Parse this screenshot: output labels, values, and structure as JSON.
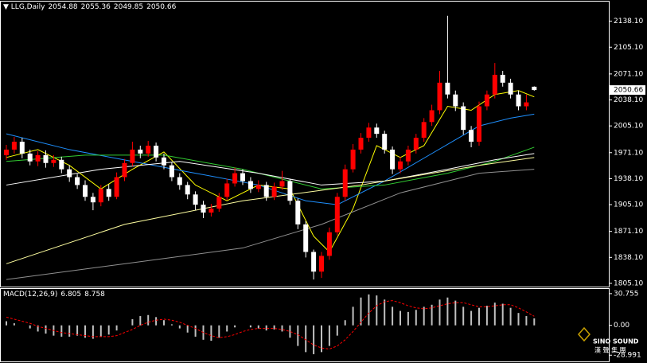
{
  "chart_data": [
    {
      "type": "candlestick",
      "title": "LLG,Daily",
      "background": "#000000",
      "up_color": "#ff0000",
      "down_color": "#ffffff",
      "open": [
        1968,
        1975,
        1985,
        1970,
        1960,
        1968,
        1958,
        1962,
        1950,
        1940,
        1930,
        1915,
        1908,
        1925,
        1915,
        1940,
        1958,
        1975,
        1970,
        1980,
        1965,
        1955,
        1940,
        1930,
        1918,
        1905,
        1895,
        1900,
        1915,
        1932,
        1945,
        1935,
        1925,
        1930,
        1915,
        1928,
        1935,
        1910,
        1880,
        1845,
        1820,
        1840,
        1870,
        1915,
        1950,
        1975,
        1990,
        2003,
        1995,
        1975,
        1950,
        1960,
        1975,
        1990,
        2010,
        2025,
        2060,
        2045,
        2030,
        2000,
        1985,
        2030,
        2045,
        2070,
        2060,
        2045,
        2030,
        2054.88
      ],
      "high": [
        1981,
        1991,
        1990,
        1975,
        1973,
        1974,
        1968,
        1966,
        1955,
        1944,
        1936,
        1920,
        1930,
        1931,
        1946,
        1963,
        1985,
        1980,
        1986,
        1984,
        1970,
        1959,
        1945,
        1934,
        1922,
        1910,
        1906,
        1920,
        1938,
        1952,
        1950,
        1940,
        1936,
        1934,
        1933,
        1948,
        1938,
        1913,
        1884,
        1848,
        1845,
        1876,
        1920,
        1956,
        1982,
        1996,
        2009,
        2008,
        1999,
        1979,
        1966,
        1980,
        1995,
        2015,
        2032,
        2075,
        2145,
        2050,
        2035,
        2005,
        2036,
        2050,
        2085,
        2075,
        2065,
        2050,
        2045,
        2055.36
      ],
      "low": [
        1962,
        1970,
        1964,
        1955,
        1954,
        1952,
        1953,
        1945,
        1934,
        1925,
        1910,
        1898,
        1903,
        1910,
        1912,
        1935,
        1954,
        1964,
        1966,
        1960,
        1950,
        1935,
        1924,
        1912,
        1898,
        1888,
        1890,
        1896,
        1911,
        1928,
        1930,
        1920,
        1921,
        1910,
        1911,
        1924,
        1905,
        1874,
        1838,
        1810,
        1812,
        1835,
        1866,
        1910,
        1946,
        1970,
        1985,
        1990,
        1970,
        1944,
        1945,
        1955,
        1970,
        1985,
        2005,
        2020,
        2040,
        2024,
        1994,
        1978,
        1980,
        2025,
        2040,
        2055,
        2040,
        2025,
        2025,
        2049.85
      ],
      "close": [
        1975,
        1985,
        1970,
        1960,
        1968,
        1958,
        1962,
        1950,
        1940,
        1930,
        1915,
        1908,
        1925,
        1915,
        1940,
        1958,
        1975,
        1970,
        1980,
        1965,
        1955,
        1940,
        1930,
        1918,
        1905,
        1895,
        1900,
        1915,
        1932,
        1945,
        1935,
        1925,
        1930,
        1915,
        1928,
        1935,
        1910,
        1880,
        1845,
        1820,
        1840,
        1870,
        1915,
        1950,
        1975,
        1990,
        2003,
        1995,
        1975,
        1950,
        1960,
        1975,
        1990,
        2010,
        2025,
        2060,
        2045,
        2030,
        2000,
        1985,
        2030,
        2045,
        2070,
        2060,
        2045,
        2030,
        2035,
        2050.66
      ],
      "lines": [
        {
          "color": "#ffff00",
          "x": [
            0,
            4,
            8,
            12,
            16,
            20,
            24,
            28,
            32,
            36,
            39,
            41,
            44,
            47,
            50,
            53,
            56,
            59,
            62,
            65,
            67
          ],
          "values": [
            1965,
            1975,
            1955,
            1925,
            1950,
            1972,
            1930,
            1910,
            1930,
            1925,
            1865,
            1845,
            1900,
            1980,
            1965,
            1980,
            2030,
            2025,
            2045,
            2050,
            2042
          ]
        },
        {
          "color": "#1e90ff",
          "x": [
            0,
            8,
            16,
            24,
            32,
            38,
            42,
            48,
            54,
            60,
            64,
            67
          ],
          "values": [
            1995,
            1975,
            1960,
            1945,
            1930,
            1910,
            1905,
            1935,
            1970,
            2005,
            2015,
            2020
          ]
        },
        {
          "color": "#32cd32",
          "x": [
            0,
            10,
            20,
            30,
            40,
            48,
            56,
            62,
            67
          ],
          "values": [
            1960,
            1968,
            1968,
            1950,
            1925,
            1930,
            1945,
            1960,
            1978
          ]
        },
        {
          "color": "#ffffff",
          "x": [
            0,
            12,
            22,
            32,
            40,
            48,
            56,
            62,
            67
          ],
          "values": [
            1930,
            1950,
            1960,
            1945,
            1930,
            1935,
            1950,
            1962,
            1970
          ]
        },
        {
          "color": "#ffffa0",
          "x": [
            0,
            15,
            30,
            45,
            60,
            67
          ],
          "values": [
            1830,
            1880,
            1910,
            1930,
            1955,
            1965
          ]
        },
        {
          "color": "#909090",
          "x": [
            0,
            15,
            30,
            40,
            50,
            60,
            67
          ],
          "values": [
            1810,
            1830,
            1850,
            1880,
            1920,
            1945,
            1950
          ]
        }
      ],
      "ylim": [
        1800,
        2163
      ],
      "yticks": [
        {
          "value": 2138.1,
          "label": "2138.10"
        },
        {
          "value": 2105.1,
          "label": "2105.10"
        },
        {
          "value": 2071.1,
          "label": "2071.10"
        },
        {
          "value": 2038.1,
          "label": "2038.10"
        },
        {
          "value": 2005.1,
          "label": "2005.10"
        },
        {
          "value": 1971.1,
          "label": "1971.10"
        },
        {
          "value": 1938.1,
          "label": "1938.10"
        },
        {
          "value": 1905.1,
          "label": "1905.10"
        },
        {
          "value": 1871.1,
          "label": "1871.10"
        },
        {
          "value": 1838.1,
          "label": "1838.10"
        },
        {
          "value": 1805.1,
          "label": "1805.10"
        }
      ]
    },
    {
      "type": "macd",
      "title": "MACD(12,26,9)",
      "color": "#c0c0c0",
      "signal_color": "#ff0000",
      "values": [
        4,
        2,
        0,
        -3,
        -6,
        -8,
        -10,
        -11,
        -11,
        -10,
        -12,
        -13,
        -11,
        -9,
        -5,
        0,
        6,
        9,
        10,
        8,
        5,
        1,
        -3,
        -7,
        -11,
        -14,
        -15,
        -12,
        -6,
        -2,
        0,
        -2,
        -3,
        -5,
        -4,
        -6,
        -12,
        -20,
        -26,
        -28,
        -26,
        -20,
        -10,
        5,
        18,
        27,
        30,
        29,
        25,
        18,
        14,
        13,
        15,
        18,
        20,
        25,
        27,
        24,
        18,
        14,
        17,
        19,
        22,
        21,
        17,
        12,
        9,
        6.805
      ],
      "signal": [
        8,
        6,
        4,
        2,
        -1,
        -3,
        -5,
        -7,
        -8,
        -9,
        -10,
        -11,
        -11,
        -11,
        -10,
        -7,
        -4,
        0,
        3,
        5,
        6,
        5,
        3,
        0,
        -3,
        -7,
        -10,
        -12,
        -11,
        -9,
        -6,
        -4,
        -3,
        -3,
        -3,
        -4,
        -6,
        -9,
        -14,
        -19,
        -22,
        -23,
        -20,
        -14,
        -6,
        3,
        12,
        19,
        23,
        24,
        22,
        19,
        17,
        16,
        17,
        19,
        21,
        22,
        22,
        20,
        18,
        18,
        19,
        20,
        20,
        17,
        13,
        8.758
      ],
      "ylim": [
        -35,
        35.3
      ],
      "yticks": [
        30.755,
        {
          "value": 0,
          "label": "0.00"
        },
        -28.991
      ]
    }
  ],
  "watermark": {
    "brand": "SINO SOUND",
    "chinese": "漢 聲 集 團"
  }
}
